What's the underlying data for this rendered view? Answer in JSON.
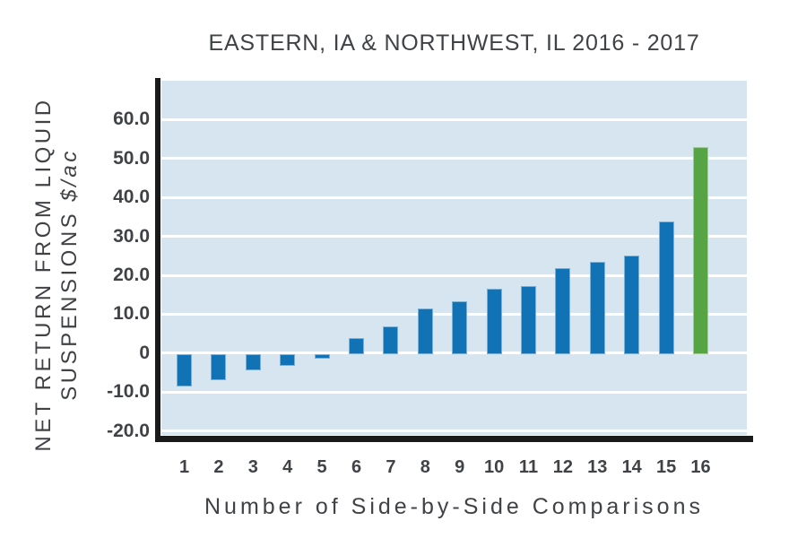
{
  "chart_data": {
    "type": "bar",
    "title": "EASTERN, IA & NORTHWEST, IL 2016 - 2017",
    "xlabel": "Number of Side-by-Side Comparisons",
    "ylabel": "NET RETURN FROM LIQUID SUSPENSIONS $/ac",
    "ylabel_line1": "NET RETURN FROM LIQUID",
    "ylabel_line2_prefix": "SUSPENSIONS ",
    "ylabel_line2_italic": "$/ac",
    "categories": [
      "1",
      "2",
      "3",
      "4",
      "5",
      "6",
      "7",
      "8",
      "9",
      "10",
      "11",
      "12",
      "13",
      "14",
      "15",
      "16"
    ],
    "values": [
      -8.5,
      -7.0,
      -4.5,
      -3.3,
      -1.5,
      3.9,
      6.9,
      11.4,
      13.3,
      16.5,
      17.2,
      21.9,
      23.4,
      25.0,
      33.9,
      53.0
    ],
    "highlight_index": 15,
    "yticks": [
      {
        "value": 60,
        "label": "60.0"
      },
      {
        "value": 50,
        "label": "50.0"
      },
      {
        "value": 40,
        "label": "40.0"
      },
      {
        "value": 30,
        "label": "30.0"
      },
      {
        "value": 20,
        "label": "20.0"
      },
      {
        "value": 10,
        "label": "10.0"
      },
      {
        "value": 0,
        "label": "0"
      },
      {
        "value": -10,
        "label": "-10.0"
      },
      {
        "value": -20,
        "label": "-20.0"
      }
    ],
    "ylim": [
      -21,
      70
    ],
    "grid": true,
    "legend": "none",
    "colors": {
      "bar": "#1172b6",
      "highlight": "#57a445",
      "plot_background": "#d6e5f0",
      "gridline": "#ffffff",
      "axis": "#1a1a1a",
      "text": "#3f4346"
    }
  }
}
